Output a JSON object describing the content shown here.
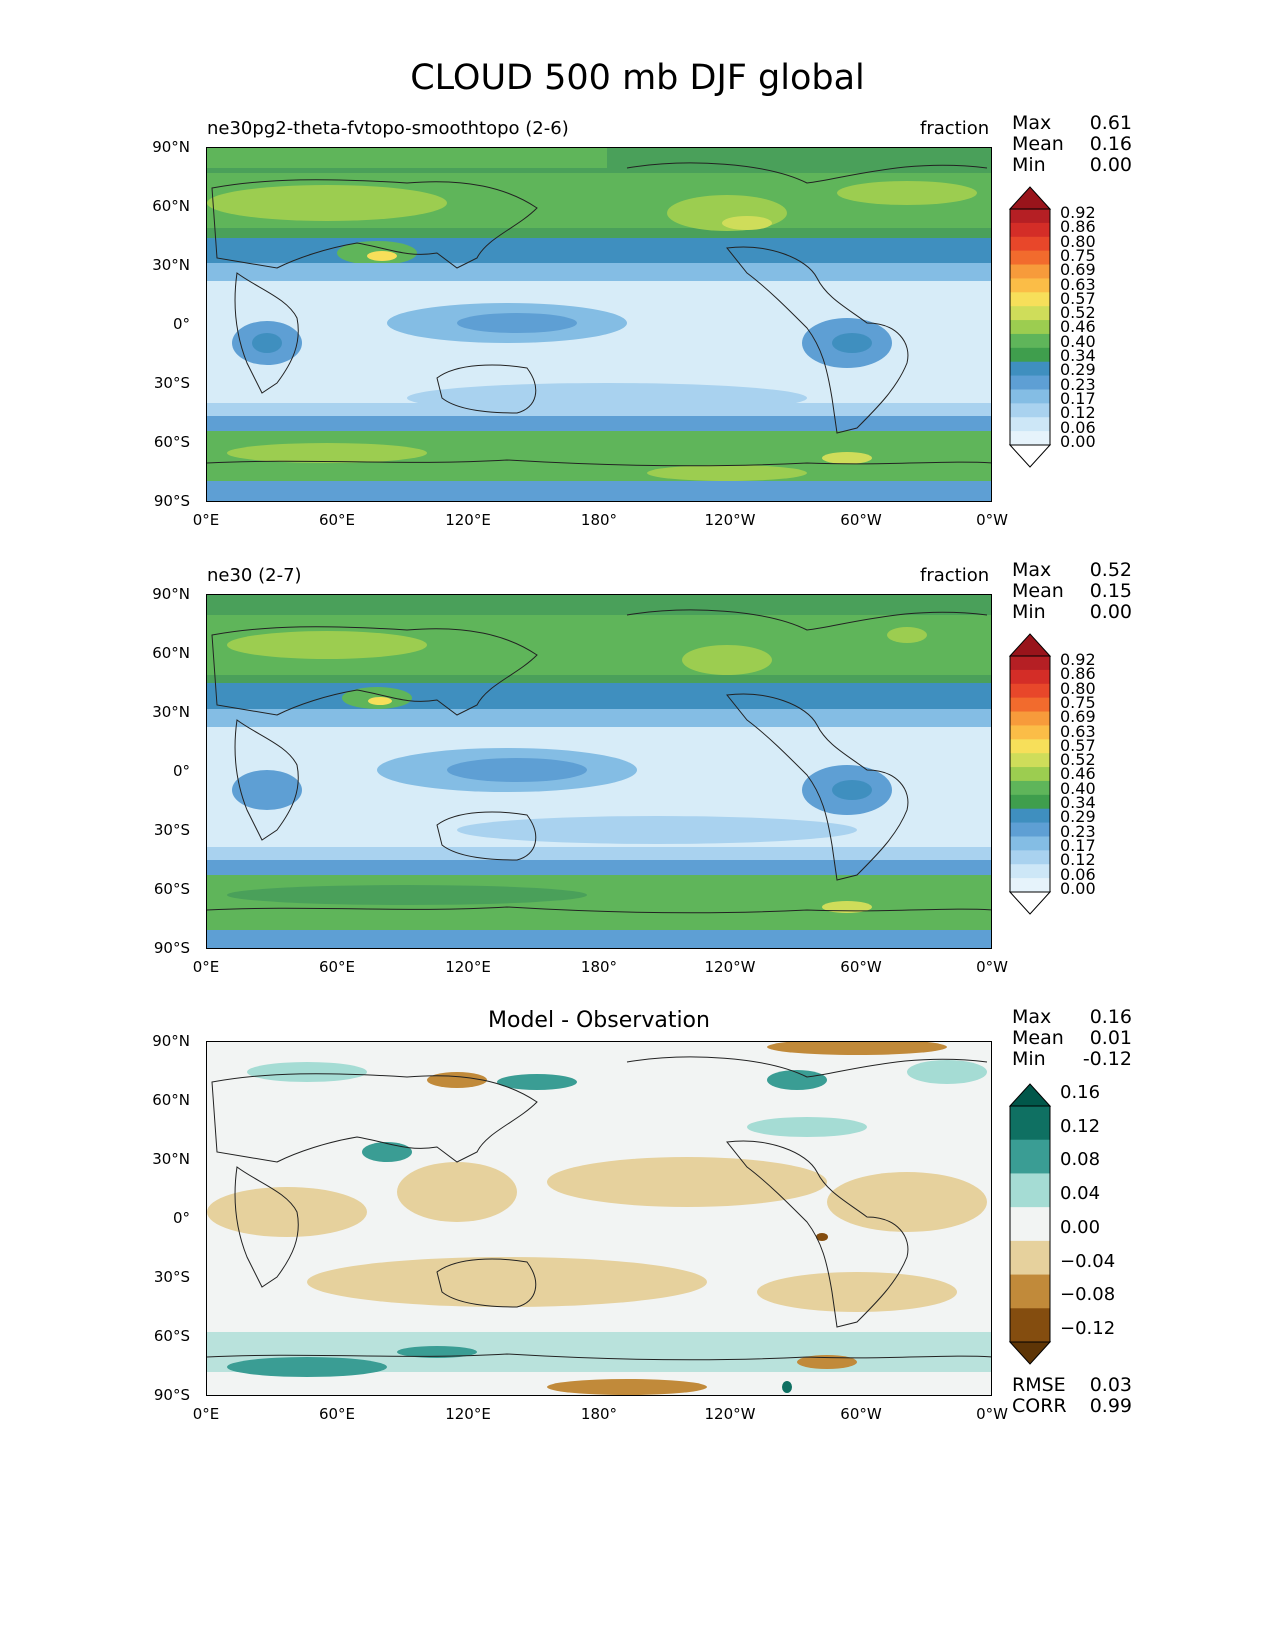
{
  "title": "CLOUD 500 mb DJF global",
  "panels": [
    {
      "left_label": "ne30pg2-theta-fvtopo-smoothtopo (2-6)",
      "right_label": "fraction",
      "stats": [
        {
          "label": "Max",
          "value": "0.61"
        },
        {
          "label": "Mean",
          "value": "0.16"
        },
        {
          "label": "Min",
          "value": "0.00"
        }
      ]
    },
    {
      "left_label": "ne30 (2-7)",
      "right_label": "fraction",
      "stats": [
        {
          "label": "Max",
          "value": "0.52"
        },
        {
          "label": "Mean",
          "value": "0.15"
        },
        {
          "label": "Min",
          "value": "0.00"
        }
      ]
    },
    {
      "center_label": "Model - Observation",
      "stats": [
        {
          "label": "Max",
          "value": "0.16"
        },
        {
          "label": "Mean",
          "value": "0.01"
        },
        {
          "label": "Min",
          "value": "-0.12"
        }
      ],
      "bottom_stats": [
        {
          "label": "RMSE",
          "value": "0.03"
        },
        {
          "label": "CORR",
          "value": "0.99"
        }
      ]
    }
  ],
  "lat_ticks": [
    "90°N",
    "60°N",
    "30°N",
    "0°",
    "30°S",
    "60°S",
    "90°S"
  ],
  "lon_ticks": [
    "0°E",
    "60°E",
    "120°E",
    "180°",
    "120°W",
    "60°W",
    "0°W"
  ],
  "colorbar_main": {
    "labels": [
      "0.92",
      "0.86",
      "0.80",
      "0.75",
      "0.69",
      "0.63",
      "0.57",
      "0.52",
      "0.46",
      "0.40",
      "0.34",
      "0.29",
      "0.23",
      "0.17",
      "0.12",
      "0.06",
      "0.00"
    ],
    "colors": [
      "#99141b",
      "#b51f24",
      "#d42d27",
      "#e8472a",
      "#f26b2d",
      "#f79b3b",
      "#fbbd47",
      "#f7df5a",
      "#cfdd5a",
      "#9ccd50",
      "#5fb55a",
      "#3f9e4d",
      "#3f8fbf",
      "#5e9fd4",
      "#84bde4",
      "#a9d2ef",
      "#cde7f7",
      "#e6f3fb",
      "#ffffff"
    ]
  },
  "colorbar_diff": {
    "labels": [
      "0.16",
      "0.12",
      "0.08",
      "0.04",
      "0.00",
      "−0.04",
      "−0.08",
      "−0.12"
    ],
    "colors": [
      "#01574a",
      "#0f7062",
      "#3a9d94",
      "#a5dcd4",
      "#f2f4f3",
      "#e6d19d",
      "#c18a3a",
      "#844d0f",
      "#5e3506"
    ]
  }
}
